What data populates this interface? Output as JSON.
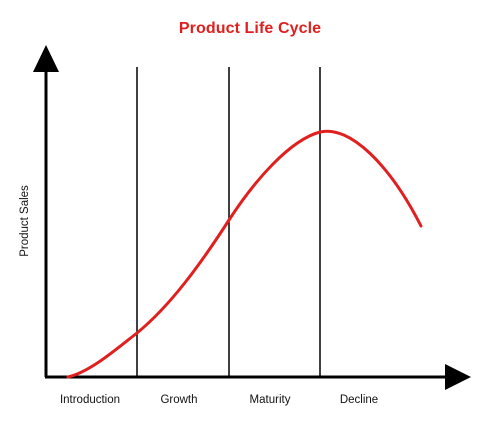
{
  "title": "Product Life Cycle",
  "y_axis_label": "Product Sales",
  "stages": [
    "Introduction",
    "Growth",
    "Maturity",
    "Decline"
  ],
  "colors": {
    "title": "#e0201f",
    "curve": "#e0201f",
    "axes": "#000000",
    "dividers": "#000000"
  }
}
